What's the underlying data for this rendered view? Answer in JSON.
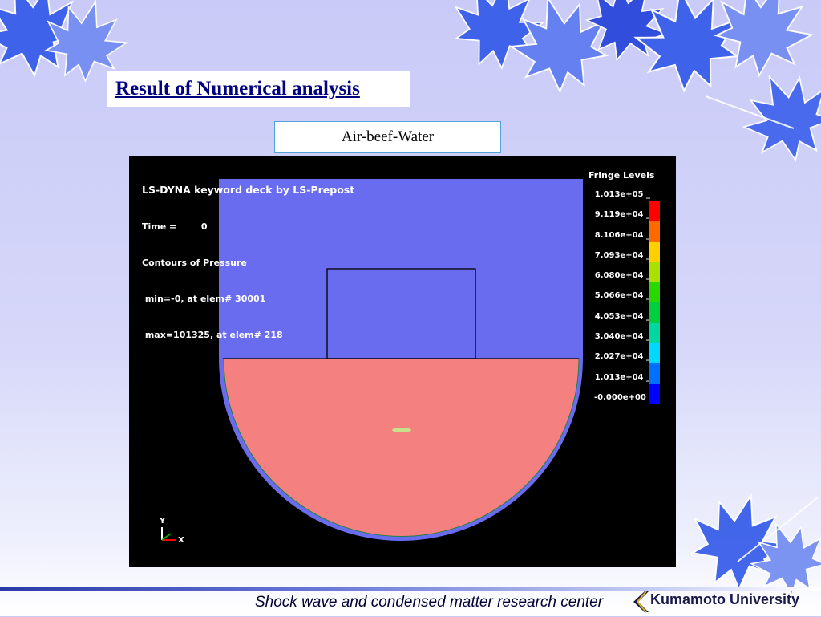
{
  "slide": {
    "title": "Result of Numerical analysis",
    "subtitle": "Air-beef-Water",
    "footer_text": "Shock wave and condensed matter research center",
    "logo_text": "Kumamoto University"
  },
  "simulation": {
    "header": "LS-DYNA keyword deck by LS-Prepost",
    "time_label": "Time =",
    "time_value": "0",
    "contours": "Contours of Pressure",
    "min_line": "min=-0, at elem# 30001",
    "max_line": "max=101325, at elem# 218",
    "axis_y": "Y",
    "axis_x": "X",
    "colors": {
      "air": "#6a6cf0",
      "water": "#f58080",
      "container": "#6a6cf0",
      "beef": "#c8e08c"
    }
  },
  "fringe": {
    "title": "Fringe Levels",
    "labels": [
      "1.013e+05",
      "9.119e+04",
      "8.106e+04",
      "7.093e+04",
      "6.080e+04",
      "5.066e+04",
      "4.053e+04",
      "3.040e+04",
      "2.027e+04",
      "1.013e+04",
      "-0.000e+00"
    ],
    "colors": [
      "#ff0000",
      "#ff6a00",
      "#ffd000",
      "#a8e000",
      "#28d800",
      "#00d040",
      "#00d8a0",
      "#00d8ff",
      "#0070ff",
      "#0000ff"
    ]
  }
}
